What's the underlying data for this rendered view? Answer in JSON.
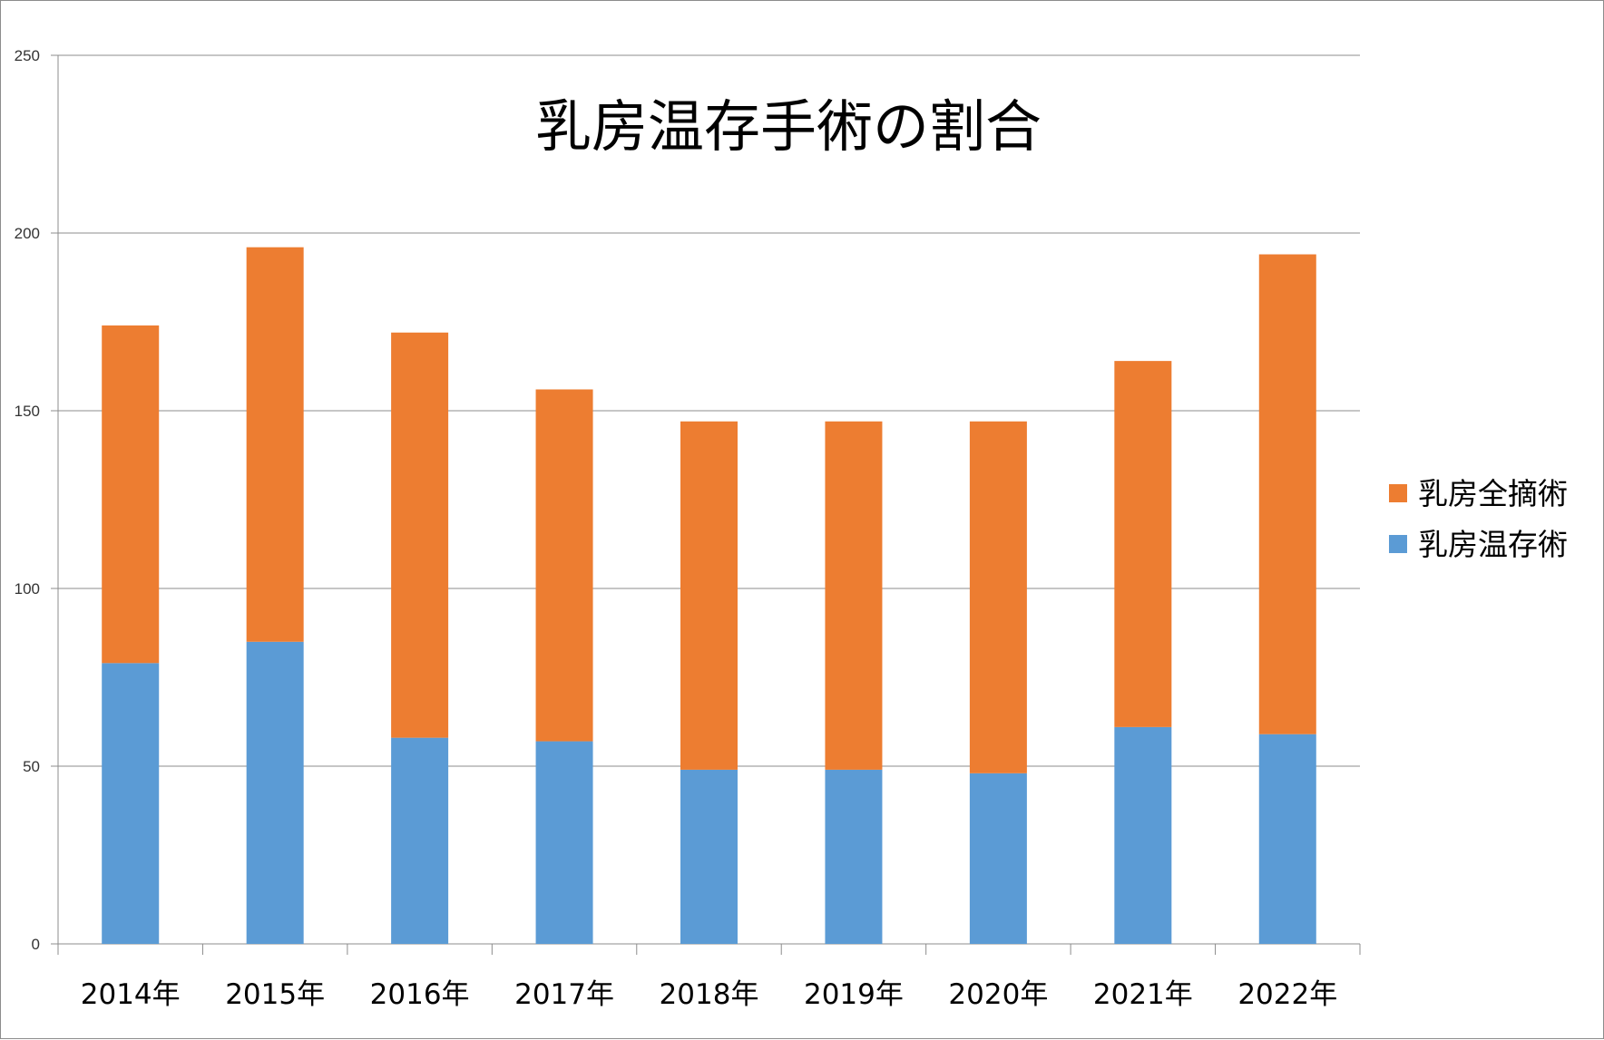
{
  "chart_data": {
    "type": "bar",
    "stacked": true,
    "title": "乳房温存手術の割合",
    "xlabel": "",
    "ylabel": "",
    "ylim": [
      0,
      250
    ],
    "yticks": [
      0,
      50,
      100,
      150,
      200,
      250
    ],
    "grid": true,
    "legend_position": "right",
    "categories": [
      "2014年",
      "2015年",
      "2016年",
      "2017年",
      "2018年",
      "2019年",
      "2020年",
      "2021年",
      "2022年"
    ],
    "series": [
      {
        "name": "乳房温存術",
        "color": "#5b9bd5",
        "values": [
          79,
          85,
          58,
          57,
          49,
          49,
          48,
          61,
          59
        ]
      },
      {
        "name": "乳房全摘術",
        "color": "#ed7d31",
        "values": [
          95,
          111,
          114,
          99,
          98,
          98,
          99,
          103,
          135
        ]
      }
    ],
    "legend_order": [
      "乳房全摘術",
      "乳房温存術"
    ]
  }
}
